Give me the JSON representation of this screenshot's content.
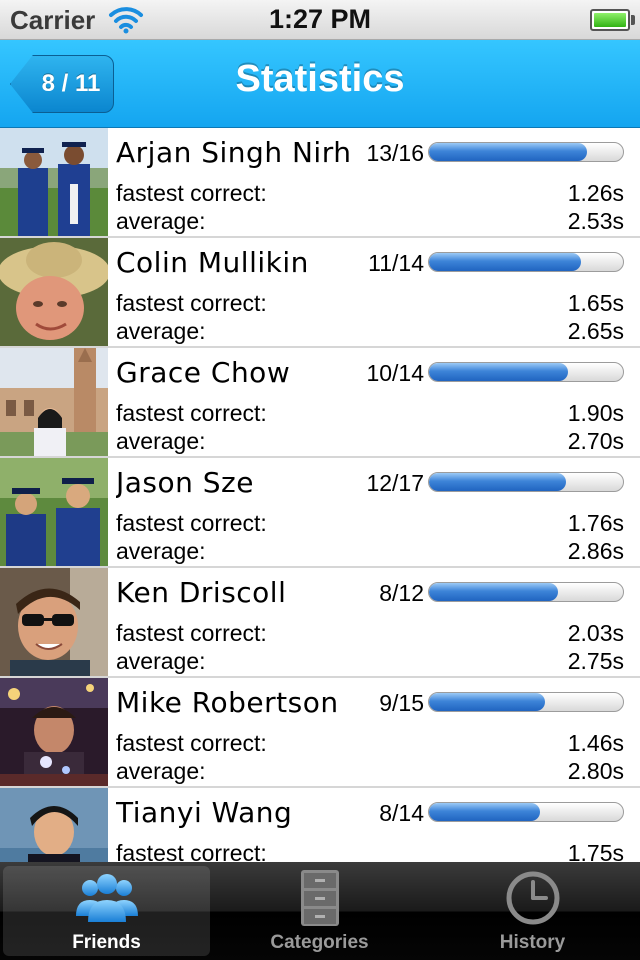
{
  "status_bar": {
    "carrier": "Carrier",
    "time": "1:27 PM"
  },
  "nav_bar": {
    "back_label": "8 / 11",
    "title": "Statistics"
  },
  "labels": {
    "fastest": "fastest correct:",
    "average": "average:"
  },
  "friends": [
    {
      "name": "Arjan Singh Nirh",
      "score": "13/16",
      "progress": 0.8125,
      "fastest": "1.26s",
      "average": "2.53s"
    },
    {
      "name": "Colin Mullikin",
      "score": "11/14",
      "progress": 0.7857,
      "fastest": "1.65s",
      "average": "2.65s"
    },
    {
      "name": "Grace Chow",
      "score": "10/14",
      "progress": 0.7143,
      "fastest": "1.90s",
      "average": "2.70s"
    },
    {
      "name": "Jason Sze",
      "score": "12/17",
      "progress": 0.7059,
      "fastest": "1.76s",
      "average": "2.86s"
    },
    {
      "name": "Ken Driscoll",
      "score": "8/12",
      "progress": 0.6667,
      "fastest": "2.03s",
      "average": "2.75s"
    },
    {
      "name": "Mike Robertson",
      "score": "9/15",
      "progress": 0.6,
      "fastest": "1.46s",
      "average": "2.80s"
    },
    {
      "name": "Tianyi Wang",
      "score": "8/14",
      "progress": 0.5714,
      "fastest": "1.75s",
      "average": ""
    }
  ],
  "tabs": [
    {
      "label": "Friends",
      "icon": "friends-icon",
      "active": true
    },
    {
      "label": "Categories",
      "icon": "cabinet-icon",
      "active": false
    },
    {
      "label": "History",
      "icon": "clock-icon",
      "active": false
    }
  ],
  "colors": {
    "nav_blue": "#1eb2f7",
    "progress_blue": "#2f78d0",
    "tab_active_text": "#ffffff",
    "tab_inactive_text": "#9a9a9a"
  }
}
